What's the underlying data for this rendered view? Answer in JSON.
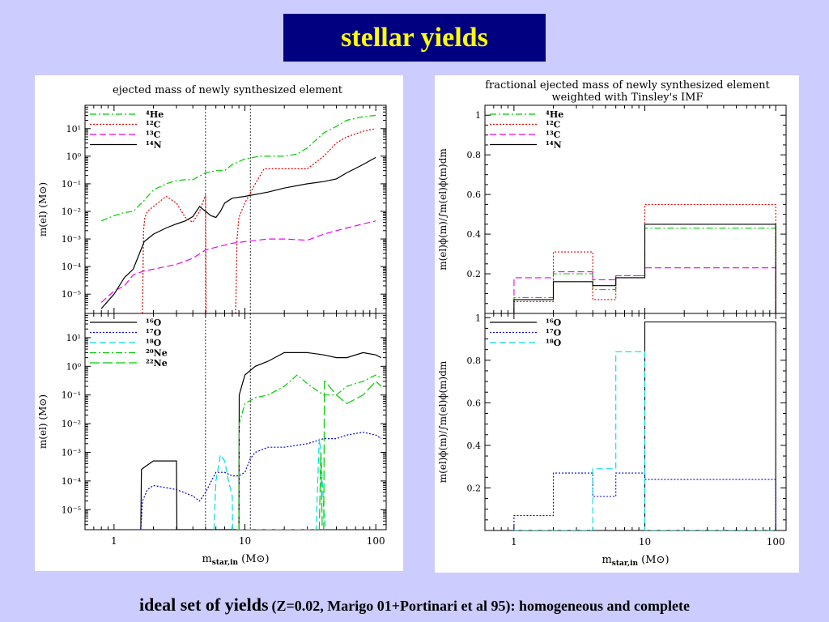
{
  "slide_title": "stellar yields",
  "footer": {
    "main": "ideal set of yields",
    "detail": "(Z=0.02, Marigo 01+Portinari et al 95): homogeneous and complete"
  },
  "chart_data": [
    {
      "id": "left-top",
      "type": "line",
      "title": "ejected mass of newly synthesized element",
      "ylabel": "m(el) (M⊙)",
      "xscale": "log",
      "yscale": "log",
      "xlim": [
        0.6,
        120
      ],
      "ylim": [
        2e-06,
        70
      ],
      "yticks": [
        {
          "v": 10,
          "label": "10¹"
        },
        {
          "v": 1,
          "label": "10⁰"
        },
        {
          "v": 0.1,
          "label": "10⁻¹"
        },
        {
          "v": 0.01,
          "label": "10⁻²"
        },
        {
          "v": 0.001,
          "label": "10⁻³"
        },
        {
          "v": 0.0001,
          "label": "10⁻⁴"
        },
        {
          "v": 1e-05,
          "label": "10⁻⁵"
        }
      ],
      "vlines": [
        5,
        11
      ],
      "legend_position": "top-left",
      "series": [
        {
          "name": "⁴He",
          "color": "#00cc00",
          "dash": "8,3,2,3",
          "x": [
            0.8,
            1,
            1.2,
            1.4,
            1.7,
            2,
            2.5,
            3,
            3.5,
            4,
            5,
            6,
            7,
            8,
            10,
            13,
            15,
            20,
            25,
            30,
            40,
            50,
            60,
            80,
            100
          ],
          "y": [
            0.0045,
            0.007,
            0.009,
            0.01,
            0.025,
            0.06,
            0.1,
            0.13,
            0.14,
            0.14,
            0.25,
            0.3,
            0.3,
            0.5,
            0.8,
            1,
            1,
            1,
            1.2,
            2,
            7,
            12,
            20,
            27,
            30
          ]
        },
        {
          "name": "¹²C",
          "color": "#dd0000",
          "dash": "2,2",
          "x": [
            1.65,
            1.68,
            1.72,
            1.8,
            2,
            2.5,
            3,
            3.5,
            4,
            4.5,
            5,
            5.05,
            5.2,
            8.5,
            8.7,
            9,
            10,
            12,
            14,
            16,
            20,
            30,
            40,
            50,
            60,
            80,
            100
          ],
          "y": [
            1.5e-06,
            0.002,
            0.006,
            0.01,
            0.015,
            0.035,
            0.02,
            0.006,
            0.004,
            0.01,
            0.04,
            1.5e-06,
            1.5e-06,
            1.5e-06,
            0.001,
            0.006,
            0.02,
            0.1,
            0.35,
            0.35,
            0.35,
            0.35,
            1,
            3,
            5,
            8,
            10
          ]
        },
        {
          "name": "¹³C",
          "color": "#ee00ee",
          "dash": "8,4",
          "x": [
            0.8,
            1,
            1.2,
            1.4,
            1.7,
            2,
            3,
            4,
            5,
            6,
            7,
            8,
            10,
            15,
            20,
            30,
            40,
            50,
            60,
            80,
            100
          ],
          "y": [
            5e-06,
            1.3e-05,
            2e-05,
            5e-05,
            7e-05,
            8e-05,
            0.00012,
            0.0002,
            0.0004,
            0.0005,
            0.0006,
            0.0007,
            0.0008,
            0.001,
            0.001,
            0.0009,
            0.0015,
            0.002,
            0.0025,
            0.0035,
            0.0045
          ]
        },
        {
          "name": "¹⁴N",
          "color": "#000000",
          "dash": "",
          "x": [
            0.8,
            1,
            1.2,
            1.4,
            1.7,
            2,
            2.5,
            3,
            3.5,
            4,
            4.5,
            5,
            5.5,
            6,
            6.5,
            7,
            8,
            10,
            15,
            20,
            30,
            40,
            50,
            60,
            80,
            100
          ],
          "y": [
            3e-06,
            1e-05,
            4e-05,
            8e-05,
            0.0008,
            0.0015,
            0.0025,
            0.0035,
            0.0045,
            0.0065,
            0.015,
            0.01,
            0.007,
            0.006,
            0.01,
            0.02,
            0.03,
            0.035,
            0.05,
            0.07,
            0.1,
            0.12,
            0.15,
            0.25,
            0.5,
            0.9
          ]
        }
      ]
    },
    {
      "id": "left-bottom",
      "type": "line",
      "xlabel": "m_star,in (M⊙)",
      "ylabel": "m(el) (M⊙)",
      "xscale": "log",
      "yscale": "log",
      "xlim": [
        0.6,
        120
      ],
      "ylim": [
        2e-06,
        70
      ],
      "xticks": [
        {
          "v": 1,
          "label": "1"
        },
        {
          "v": 10,
          "label": "10"
        },
        {
          "v": 100,
          "label": "100"
        }
      ],
      "yticks": [
        {
          "v": 10,
          "label": "10¹"
        },
        {
          "v": 1,
          "label": "10⁰"
        },
        {
          "v": 0.1,
          "label": "10⁻¹"
        },
        {
          "v": 0.01,
          "label": "10⁻²"
        },
        {
          "v": 0.001,
          "label": "10⁻³"
        },
        {
          "v": 0.0001,
          "label": "10⁻⁴"
        },
        {
          "v": 1e-05,
          "label": "10⁻⁵"
        }
      ],
      "vlines": [
        5,
        11
      ],
      "legend_position": "top-left",
      "series": [
        {
          "name": "¹⁶O",
          "color": "#000000",
          "dash": "",
          "x": [
            1.6,
            1.62,
            1.7,
            2,
            2.5,
            3,
            3.02,
            9,
            9.05,
            10,
            12,
            15,
            20,
            30,
            40,
            50,
            60,
            80,
            100,
            110
          ],
          "y": [
            1.5e-06,
            0.00025,
            0.0003,
            0.0005,
            0.0005,
            0.0005,
            1.5e-06,
            1.5e-06,
            0.1,
            0.5,
            1,
            1.5,
            3,
            3,
            2.5,
            2,
            2,
            3,
            2.5,
            2
          ]
        },
        {
          "name": "¹⁷O",
          "color": "#0000cc",
          "dash": "2,2",
          "x": [
            1.6,
            1.65,
            1.8,
            2,
            3,
            4,
            4.5,
            5,
            6,
            7,
            8,
            9,
            10,
            11,
            12,
            15,
            20,
            30,
            40,
            50,
            60,
            80,
            100,
            110
          ],
          "y": [
            1.5e-06,
            2e-05,
            5e-05,
            7e-05,
            5e-05,
            3e-05,
            2e-05,
            4e-05,
            0.0002,
            0.0002,
            0.00015,
            0.00015,
            0.0002,
            0.0006,
            0.001,
            0.0015,
            0.0015,
            0.002,
            0.003,
            0.003,
            0.004,
            0.005,
            0.004,
            0.003
          ]
        },
        {
          "name": "¹⁸O",
          "color": "#00dddd",
          "dash": "8,4",
          "x": [
            5.8,
            6,
            6.5,
            7,
            7.5,
            8,
            8.05,
            35,
            36,
            37,
            38,
            39,
            40,
            41,
            42
          ],
          "y": [
            1.5e-06,
            0.0001,
            0.0008,
            0.0005,
            0.0001,
            3e-05,
            1.5e-06,
            1.5e-06,
            0.0001,
            0.003,
            0.001,
            0.0001,
            1e-05,
            3e-06,
            1.5e-06
          ]
        },
        {
          "name": "²⁰Ne",
          "color": "#00cc00",
          "dash": "8,3,2,3",
          "x": [
            9,
            9.05,
            10,
            12,
            15,
            20,
            25,
            30,
            35,
            40,
            50,
            60,
            80,
            100,
            110
          ],
          "y": [
            1.5e-06,
            0.01,
            0.05,
            0.08,
            0.1,
            0.2,
            0.5,
            0.25,
            0.15,
            0.1,
            0.1,
            0.2,
            0.3,
            0.5,
            0.4
          ]
        },
        {
          "name": "²²Ne",
          "color": "#00cc00",
          "dash": "12,4",
          "x": [
            36,
            37,
            38,
            39,
            40,
            40.5,
            41,
            50,
            60,
            80,
            100,
            110
          ],
          "y": [
            1.5e-06,
            1.5e-06,
            0.001,
            1.5e-06,
            1.5e-06,
            0.3,
            0.3,
            0.1,
            0.05,
            0.1,
            0.3,
            0.2
          ]
        }
      ]
    },
    {
      "id": "right-top",
      "type": "line",
      "title": "fractional ejected mass of newly synthesized element",
      "subtitle": "weighted with Tinsley's IMF",
      "ylabel": "m(el)ϕ(m)/∫m(el)ϕ(m)dm",
      "xscale": "log",
      "yscale": "linear",
      "xlim": [
        0.6,
        120
      ],
      "ylim": [
        0,
        1.05
      ],
      "yticks": [
        {
          "v": 0.2,
          "label": "0.2"
        },
        {
          "v": 0.4,
          "label": "0.4"
        },
        {
          "v": 0.6,
          "label": "0.6"
        },
        {
          "v": 0.8,
          "label": "0.8"
        },
        {
          "v": 1,
          "label": "1"
        }
      ],
      "legend_position": "top-left",
      "bin_edges": [
        1,
        2,
        4,
        6,
        10,
        100
      ],
      "series": [
        {
          "name": "⁴He",
          "color": "#00cc00",
          "dash": "8,3,2,3",
          "values": [
            0.08,
            0.2,
            0.12,
            0.19,
            0.43
          ]
        },
        {
          "name": "¹²C",
          "color": "#dd0000",
          "dash": "2,2",
          "values": [
            0.06,
            0.31,
            0.07,
            0.18,
            0.55
          ]
        },
        {
          "name": "¹³C",
          "color": "#ee00ee",
          "dash": "8,4",
          "values": [
            0.18,
            0.21,
            0.17,
            0.19,
            0.23
          ]
        },
        {
          "name": "¹⁴N",
          "color": "#000000",
          "dash": "",
          "values": [
            0.07,
            0.16,
            0.14,
            0.18,
            0.45
          ]
        }
      ]
    },
    {
      "id": "right-bottom",
      "type": "line",
      "xlabel": "m_star,in (M⊙)",
      "ylabel": "m(el)ϕ(m)/∫m(el)ϕ(m)dm",
      "xscale": "log",
      "yscale": "linear",
      "xlim": [
        0.6,
        120
      ],
      "ylim": [
        0,
        1.02
      ],
      "xticks": [
        {
          "v": 1,
          "label": "1"
        },
        {
          "v": 10,
          "label": "10"
        },
        {
          "v": 100,
          "label": "100"
        }
      ],
      "yticks": [
        {
          "v": 0.2,
          "label": "0.2"
        },
        {
          "v": 0.4,
          "label": "0.4"
        },
        {
          "v": 0.6,
          "label": "0.6"
        },
        {
          "v": 0.8,
          "label": "0.8"
        },
        {
          "v": 1,
          "label": "1"
        }
      ],
      "legend_position": "top-left",
      "bin_edges": [
        1,
        2,
        4,
        6,
        10,
        100
      ],
      "series": [
        {
          "name": "¹⁶O",
          "color": "#000000",
          "dash": "",
          "values": [
            0,
            0,
            0,
            0,
            0.98
          ]
        },
        {
          "name": "¹⁷O",
          "color": "#0000cc",
          "dash": "2,2",
          "values": [
            0.07,
            0.27,
            0.16,
            0.27,
            0.24
          ]
        },
        {
          "name": "¹⁸O",
          "color": "#00dddd",
          "dash": "8,4",
          "values": [
            0,
            0,
            0.29,
            0.84,
            0
          ]
        }
      ]
    }
  ]
}
